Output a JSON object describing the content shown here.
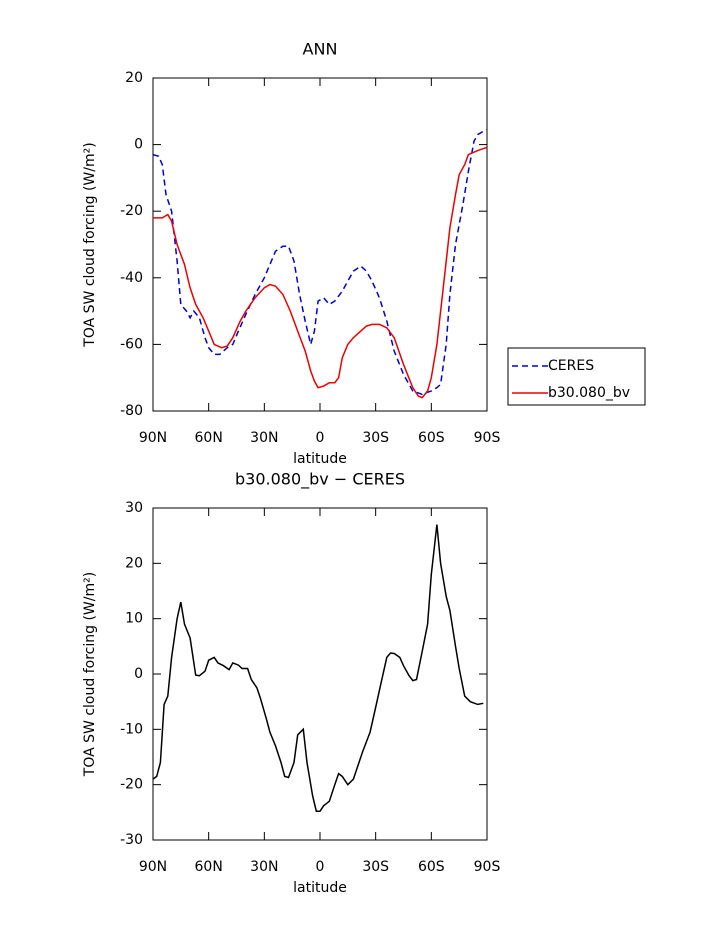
{
  "chart_data": [
    {
      "type": "line",
      "title": "ANN",
      "x_label": "latitude",
      "y_label": "TOA SW cloud forcing (W/m²)",
      "xlim": [
        90,
        -90
      ],
      "ylim": [
        20,
        -80
      ],
      "xticks": [
        {
          "value": 90,
          "label": "90N"
        },
        {
          "value": 60,
          "label": "60N"
        },
        {
          "value": 30,
          "label": "30N"
        },
        0,
        {
          "value": -30,
          "label": "30S"
        },
        {
          "value": -60,
          "label": "60S"
        },
        {
          "value": -90,
          "label": "90S"
        }
      ],
      "yticks": [
        20,
        0,
        -20,
        -40,
        -60,
        -80
      ],
      "legend": "right",
      "series": [
        {
          "name": "CERES",
          "color": "#0000dd",
          "dash": true,
          "x": [
            90,
            87,
            85,
            83,
            80,
            77,
            75,
            72,
            70,
            68,
            65,
            62,
            60,
            57,
            54,
            50,
            47,
            44,
            40,
            35,
            30,
            27,
            24,
            20,
            17,
            14,
            11,
            8,
            5,
            3,
            1,
            -2,
            -5,
            -8,
            -12,
            -15,
            -18,
            -22,
            -25,
            -28,
            -32,
            -36,
            -40,
            -45,
            -50,
            -55,
            -60,
            -63,
            -65,
            -68,
            -70,
            -73,
            -77,
            -80,
            -83,
            -85,
            -88,
            -90
          ],
          "values": [
            -3,
            -3.5,
            -6,
            -15,
            -20,
            -35,
            -48,
            -50,
            -52,
            -50,
            -52,
            -58,
            -61,
            -63,
            -63,
            -61,
            -60,
            -56,
            -51,
            -45,
            -40,
            -36,
            -32,
            -30.5,
            -30.5,
            -35,
            -45,
            -53,
            -60,
            -56,
            -47,
            -46,
            -48,
            -47,
            -44,
            -41,
            -38,
            -36.5,
            -38,
            -41,
            -46,
            -53,
            -62,
            -69,
            -74,
            -75,
            -74,
            -73,
            -72,
            -60,
            -45,
            -30,
            -18,
            -8,
            1,
            3,
            4,
            4.5
          ]
        },
        {
          "name": "b30.080_bv",
          "color": "#ee0000",
          "dash": false,
          "x": [
            90,
            85,
            82,
            80,
            77,
            73,
            70,
            67,
            63,
            60,
            57,
            53,
            50,
            47,
            43,
            40,
            35,
            30,
            27,
            24,
            20,
            16,
            12,
            8,
            5,
            3,
            1,
            -2,
            -5,
            -8,
            -10,
            -12,
            -15,
            -18,
            -22,
            -25,
            -28,
            -32,
            -36,
            -40,
            -45,
            -50,
            -53,
            -55,
            -58,
            -60,
            -63,
            -66,
            -70,
            -73,
            -75,
            -78,
            -80,
            -85,
            -90
          ],
          "values": [
            -22,
            -22,
            -21,
            -23,
            -30,
            -36,
            -43,
            -48,
            -52,
            -56,
            -60,
            -61,
            -60.5,
            -58,
            -53,
            -50,
            -46,
            -43,
            -42,
            -42.5,
            -45,
            -50,
            -56,
            -62,
            -68,
            -71,
            -73,
            -72.5,
            -71.5,
            -71.5,
            -70,
            -64,
            -60,
            -58,
            -56,
            -54.5,
            -54,
            -54,
            -55,
            -58,
            -66,
            -73,
            -75.5,
            -76,
            -74,
            -70,
            -60,
            -45,
            -25,
            -15,
            -9,
            -6,
            -3,
            -1.8,
            -0.8
          ]
        }
      ]
    },
    {
      "type": "line",
      "title": "b30.080_bv − CERES",
      "x_label": "latitude",
      "y_label": "TOA SW cloud forcing (W/m²)",
      "xlim": [
        90,
        -90
      ],
      "ylim": [
        30,
        -30
      ],
      "xticks": [
        {
          "value": 90,
          "label": "90N"
        },
        {
          "value": 60,
          "label": "60N"
        },
        {
          "value": 30,
          "label": "30N"
        },
        0,
        {
          "value": -30,
          "label": "30S"
        },
        {
          "value": -60,
          "label": "60S"
        },
        {
          "value": -90,
          "label": "90S"
        }
      ],
      "yticks": [
        30,
        20,
        10,
        0,
        -10,
        -20,
        -30
      ],
      "series": [
        {
          "color": "#000000",
          "dash": false,
          "x": [
            90,
            88,
            86,
            84,
            82,
            80,
            77,
            75,
            73,
            70,
            67,
            65,
            62,
            60,
            57,
            55,
            52,
            49,
            47,
            44,
            42,
            39,
            37,
            34,
            32,
            29,
            27,
            24,
            21,
            19,
            17,
            14,
            12,
            9,
            7,
            4,
            2,
            0,
            -2,
            -5,
            -8,
            -10,
            -12,
            -15,
            -18,
            -20,
            -23,
            -27,
            -30,
            -33,
            -36,
            -38,
            -40,
            -43,
            -45,
            -48,
            -50,
            -52,
            -55,
            -58,
            -60,
            -63,
            -65,
            -68,
            -70,
            -73,
            -75,
            -78,
            -81,
            -85,
            -88
          ],
          "values": [
            -19,
            -18.5,
            -16,
            -5.5,
            -4,
            3,
            10,
            13,
            9,
            6.5,
            -0.2,
            -0.3,
            0.5,
            2.5,
            3,
            2,
            1.5,
            0.8,
            2,
            1.6,
            1,
            1,
            -1,
            -2.5,
            -4.5,
            -8,
            -10.5,
            -13,
            -16,
            -18.5,
            -18.7,
            -16,
            -11,
            -10,
            -16,
            -22,
            -24.8,
            -24.8,
            -23.8,
            -23,
            -20,
            -18,
            -18.5,
            -20,
            -19,
            -17,
            -14,
            -10.5,
            -6,
            -1.5,
            3,
            3.8,
            3.7,
            3,
            1.5,
            -0.3,
            -1.2,
            -1,
            4,
            9,
            18,
            27,
            20,
            14,
            11.5,
            5,
            1,
            -4,
            -5,
            -5.5,
            -5.3
          ]
        }
      ]
    }
  ]
}
